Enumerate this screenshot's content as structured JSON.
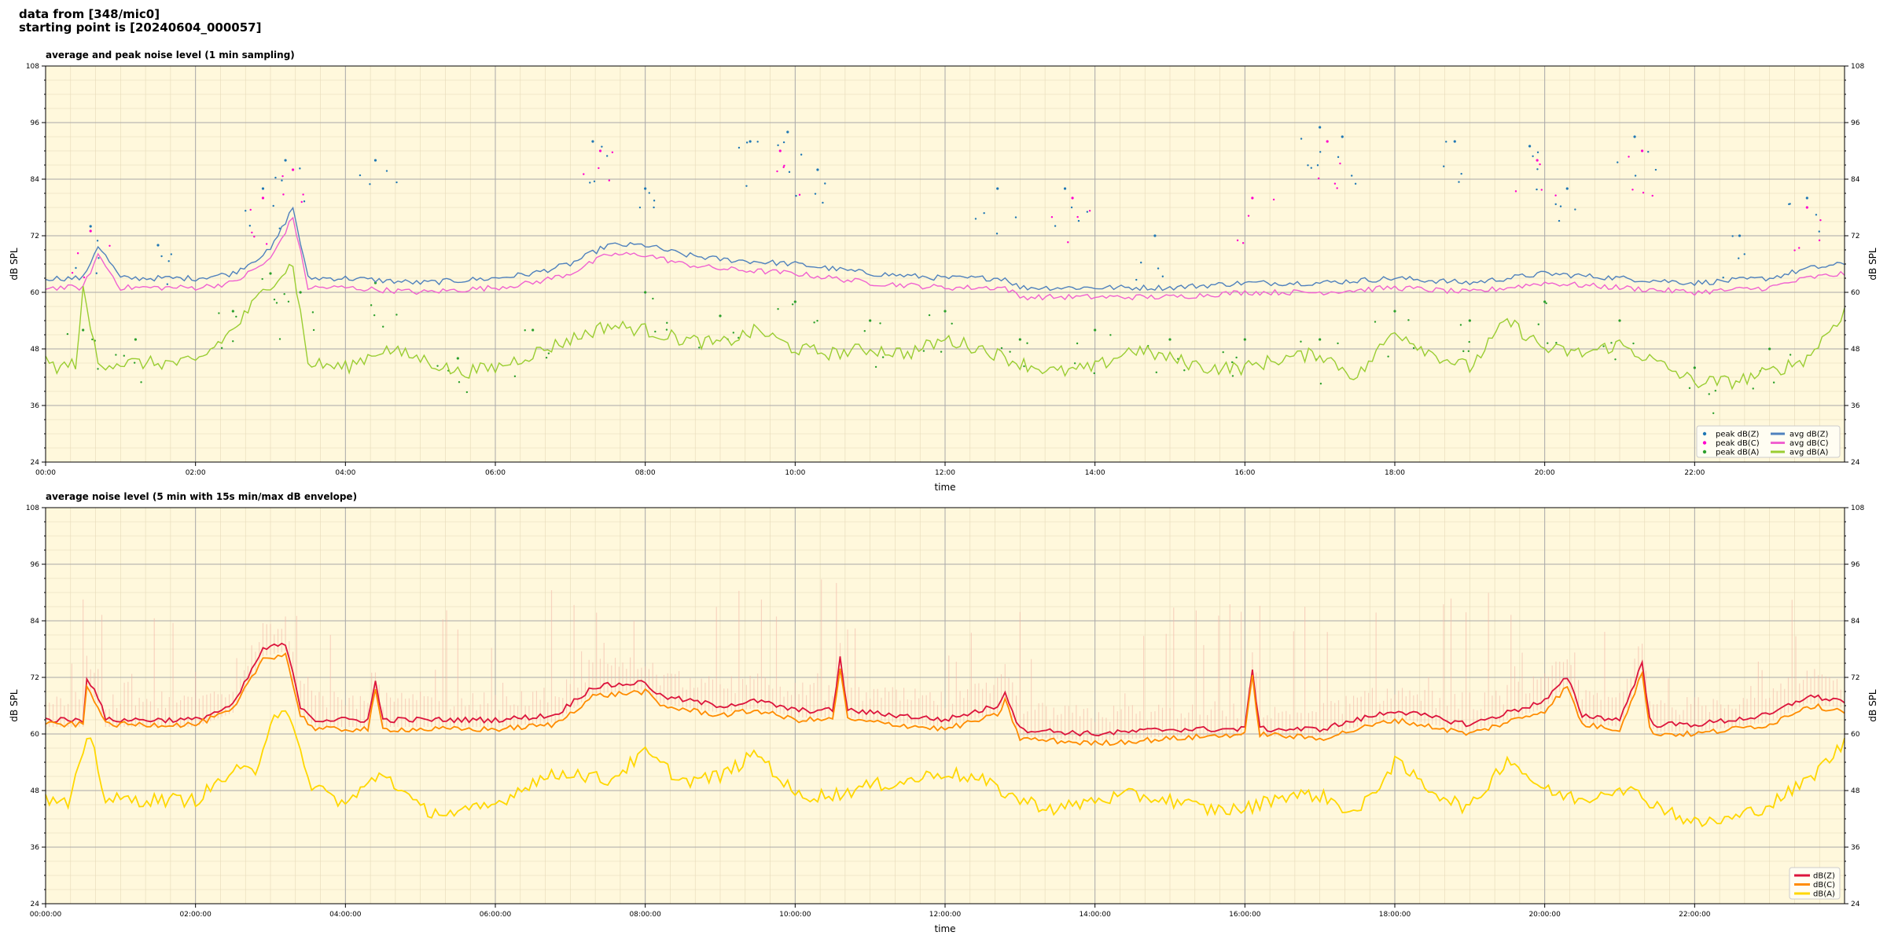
{
  "header": {
    "line1": "data from [348/mic0]",
    "line2": "starting point is [20240604_000057]"
  },
  "colors": {
    "plot_bg": "#fff8dc",
    "peak_Z": "#1f77b4",
    "peak_C": "#ff00cc",
    "peak_A": "#2ca02c",
    "avg_Z": "#4f81bd",
    "avg_C": "#f062d0",
    "avg_A": "#9acd32",
    "env_Z": "#dc143c",
    "env_C": "#ff8c00",
    "env_A": "#ffd700",
    "envelope": "#f4b6a6"
  },
  "chart_data": [
    {
      "type": "line",
      "title": "average and peak noise level (1 min sampling)",
      "xlabel": "time",
      "ylabel": "dB SPL",
      "ylim": [
        24,
        108
      ],
      "yticks": [
        24,
        36,
        48,
        60,
        72,
        84,
        96,
        108
      ],
      "xlim_hours": [
        0,
        24
      ],
      "xtick_labels": [
        "00:00",
        "02:00",
        "04:00",
        "06:00",
        "08:00",
        "10:00",
        "12:00",
        "14:00",
        "16:00",
        "18:00",
        "20:00",
        "22:00"
      ],
      "grid": true,
      "legend_position": "lower-right",
      "legend": [
        "peak dB(Z)",
        "peak dB(C)",
        "peak dB(A)",
        "avg dB(Z)",
        "avg dB(C)",
        "avg dB(A)"
      ],
      "series": [
        {
          "name": "avg dB(Z)",
          "style": "line",
          "x_hours": [
            0,
            0.5,
            0.7,
            1,
            2,
            2.5,
            3,
            3.3,
            3.5,
            4,
            5,
            6,
            6.5,
            7,
            7.5,
            8,
            8.5,
            9,
            10,
            10.5,
            11,
            12,
            12.5,
            12.8,
            13,
            14,
            15,
            16,
            17,
            18,
            19,
            20,
            21,
            22,
            23,
            23.5,
            24
          ],
          "values": [
            63,
            63,
            70,
            63,
            63,
            64,
            69,
            78,
            63,
            63,
            62,
            63,
            64,
            66,
            70,
            70,
            68,
            67,
            66,
            65,
            64,
            63,
            63,
            63,
            61,
            61,
            61,
            62,
            62,
            63,
            62,
            64,
            63,
            62,
            63,
            65,
            66
          ]
        },
        {
          "name": "avg dB(C)",
          "style": "line",
          "x_hours": [
            0,
            0.5,
            0.7,
            1,
            2,
            2.5,
            3,
            3.3,
            3.5,
            4,
            5,
            6,
            6.5,
            7,
            7.5,
            8,
            8.5,
            9,
            10,
            10.5,
            11,
            12,
            12.5,
            12.8,
            13,
            14,
            15,
            16,
            17,
            18,
            19,
            20,
            21,
            22,
            23,
            23.5,
            24
          ],
          "values": [
            61,
            61,
            68,
            61,
            61,
            62,
            67,
            76,
            61,
            61,
            60,
            61,
            62,
            64,
            68,
            68,
            66,
            65,
            64,
            63,
            62,
            61,
            61,
            61,
            59,
            59,
            59,
            60,
            60,
            61,
            60,
            62,
            61,
            60,
            61,
            63,
            64
          ]
        },
        {
          "name": "avg dB(A)",
          "style": "line",
          "x_hours": [
            0,
            0.2,
            0.4,
            0.5,
            0.7,
            1,
            2,
            2.5,
            3,
            3.3,
            3.5,
            4,
            4.5,
            5,
            5.5,
            6,
            6.5,
            7,
            7.5,
            8,
            8.5,
            9,
            9.5,
            10,
            10.5,
            11,
            11.5,
            12,
            12.5,
            13,
            13.5,
            14,
            14.5,
            15,
            15.5,
            16,
            16.5,
            17,
            17.5,
            18,
            18.5,
            19,
            19.5,
            20,
            20.5,
            21,
            21.5,
            22,
            22.5,
            23,
            23.5,
            24
          ],
          "values": [
            45,
            44,
            45,
            60,
            45,
            45,
            45,
            52,
            62,
            66,
            45,
            44,
            48,
            46,
            43,
            44,
            47,
            50,
            53,
            52,
            50,
            49,
            52,
            48,
            47,
            48,
            47,
            50,
            48,
            45,
            43,
            44,
            48,
            46,
            44,
            44,
            46,
            47,
            42,
            52,
            47,
            44,
            54,
            48,
            47,
            49,
            45,
            41,
            41,
            43,
            46,
            56
          ]
        },
        {
          "name": "peak dB(Z)",
          "style": "dots",
          "x_hours": [
            0.6,
            1.5,
            2.9,
            3.2,
            4.4,
            7.3,
            8,
            9.4,
            9.9,
            10.3,
            12.7,
            13.6,
            14.8,
            17,
            17.3,
            18.8,
            19.8,
            20.3,
            21.2,
            22.6,
            23.5
          ],
          "values": [
            74,
            70,
            82,
            88,
            88,
            92,
            82,
            92,
            94,
            86,
            82,
            82,
            72,
            95,
            93,
            92,
            91,
            82,
            93,
            72,
            80
          ]
        },
        {
          "name": "peak dB(C)",
          "style": "dots",
          "x_hours": [
            0.6,
            2.9,
            3.3,
            7.4,
            9.8,
            13.7,
            16.1,
            17.1,
            19.9,
            21.3,
            23.5
          ],
          "values": [
            73,
            80,
            86,
            90,
            90,
            80,
            80,
            92,
            88,
            90,
            78
          ]
        },
        {
          "name": "peak dB(A)",
          "style": "dots",
          "x_hours": [
            0.5,
            1.2,
            2.5,
            3,
            3.4,
            4.4,
            5.5,
            6.5,
            8,
            9,
            10,
            11,
            12,
            13,
            14,
            15,
            16,
            17,
            18,
            19,
            20,
            21,
            22,
            23
          ],
          "values": [
            52,
            50,
            56,
            64,
            60,
            62,
            46,
            52,
            60,
            55,
            58,
            54,
            56,
            50,
            52,
            50,
            50,
            50,
            56,
            54,
            58,
            54,
            44,
            48
          ]
        }
      ]
    },
    {
      "type": "line",
      "title": "average noise level (5 min with 15s min/max dB envelope)",
      "xlabel": "time",
      "ylabel": "dB SPL",
      "ylim": [
        24,
        108
      ],
      "yticks": [
        24,
        36,
        48,
        60,
        72,
        84,
        96,
        108
      ],
      "xlim_hours": [
        0,
        24
      ],
      "xtick_labels": [
        "00:00:00",
        "02:00:00",
        "04:00:00",
        "06:00:00",
        "08:00:00",
        "10:00:00",
        "12:00:00",
        "14:00:00",
        "16:00:00",
        "18:00:00",
        "20:00:00",
        "22:00:00"
      ],
      "grid": true,
      "legend_position": "lower-right",
      "legend": [
        "dB(Z)",
        "dB(C)",
        "dB(A)"
      ],
      "series": [
        {
          "name": "dB(Z)",
          "x_hours": [
            0,
            0.5,
            0.55,
            0.7,
            0.8,
            2,
            2.5,
            2.9,
            3.2,
            3.4,
            3.6,
            4,
            4.3,
            4.4,
            4.5,
            5,
            6,
            6.8,
            7.3,
            8,
            8.2,
            9,
            9.5,
            10,
            10.5,
            10.6,
            10.7,
            12,
            12.7,
            12.8,
            13,
            14,
            15,
            16,
            16.1,
            16.2,
            17,
            18,
            19,
            20,
            20.3,
            20.5,
            21,
            21.3,
            21.4,
            21.5,
            22,
            23,
            23.5,
            24
          ],
          "values": [
            63,
            63,
            72,
            68,
            63,
            63,
            66,
            78,
            79,
            66,
            63,
            63,
            63,
            71,
            63,
            63,
            63,
            64,
            70,
            71,
            68,
            66,
            67,
            65,
            65,
            76,
            65,
            63,
            66,
            69,
            61,
            60,
            61,
            61,
            74,
            61,
            61,
            65,
            62,
            67,
            72,
            64,
            63,
            75,
            63,
            62,
            62,
            64,
            68,
            67
          ]
        },
        {
          "name": "dB(C)",
          "x_hours": [
            0,
            0.5,
            0.55,
            0.7,
            0.8,
            2,
            2.5,
            2.9,
            3.2,
            3.4,
            3.6,
            4,
            4.3,
            4.4,
            4.5,
            5,
            6,
            6.8,
            7.3,
            8,
            8.2,
            9,
            9.5,
            10,
            10.5,
            10.6,
            10.7,
            12,
            12.7,
            12.8,
            13,
            14,
            15,
            16,
            16.1,
            16.2,
            17,
            18,
            19,
            20,
            20.3,
            20.5,
            21,
            21.3,
            21.4,
            21.5,
            22,
            23,
            23.5,
            24
          ],
          "values": [
            62,
            62,
            70,
            66,
            62,
            62,
            65,
            76,
            77,
            64,
            61,
            61,
            61,
            69,
            61,
            61,
            61,
            62,
            68,
            69,
            66,
            64,
            65,
            63,
            63,
            74,
            63,
            61,
            64,
            67,
            59,
            58,
            59,
            60,
            72,
            60,
            59,
            63,
            60,
            65,
            70,
            62,
            61,
            73,
            61,
            60,
            60,
            62,
            66,
            65
          ]
        },
        {
          "name": "dB(A)",
          "x_hours": [
            0,
            0.3,
            0.5,
            0.6,
            0.8,
            1,
            1.5,
            2,
            2.5,
            2.8,
            3,
            3.2,
            3.5,
            4,
            4.5,
            5,
            5.5,
            6,
            6.5,
            7,
            7.5,
            8,
            8.5,
            9,
            9.5,
            10,
            10.5,
            11,
            11.5,
            12,
            12.5,
            13,
            13.5,
            14,
            14.5,
            15,
            15.5,
            16,
            16.5,
            17,
            17.5,
            18,
            18.5,
            19,
            19.5,
            20,
            20.5,
            21,
            21.5,
            22,
            22.5,
            23,
            23.5,
            24
          ],
          "values": [
            46,
            45,
            55,
            60,
            46,
            46,
            46,
            46,
            52,
            52,
            63,
            66,
            50,
            45,
            52,
            44,
            43,
            45,
            50,
            52,
            50,
            56,
            50,
            51,
            56,
            47,
            47,
            49,
            50,
            52,
            50,
            46,
            44,
            46,
            47,
            46,
            44,
            44,
            47,
            47,
            43,
            54,
            48,
            44,
            55,
            48,
            46,
            49,
            45,
            41,
            42,
            45,
            50,
            58
          ]
        }
      ]
    }
  ]
}
